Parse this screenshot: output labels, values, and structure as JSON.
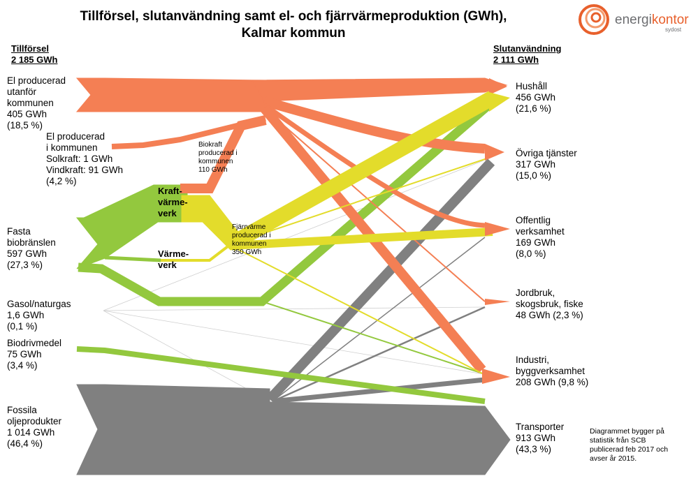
{
  "title": {
    "line1": "Tillförsel, slutanvändning samt el- och fjärrvärmeproduktion (GWh),",
    "line2": "Kalmar kommun"
  },
  "logo": {
    "part1": "energi",
    "part2": "kontor",
    "sub": "sydost"
  },
  "supply": {
    "heading": "Tillförsel",
    "total": "2 185 GWh",
    "items": [
      {
        "lines": [
          "El producerad",
          "utanför",
          "kommunen",
          "405 GWh",
          "(18,5 %)"
        ]
      },
      {
        "lines": [
          "El producerad",
          "i kommunen",
          "Solkraft: 1 GWh",
          "Vindkraft: 91 GWh",
          "(4,2 %)"
        ]
      },
      {
        "lines": [
          "Fasta",
          "biobränslen",
          "597 GWh",
          "(27,3 %)"
        ]
      },
      {
        "lines": [
          "Gasol/naturgas",
          "1,6 GWh",
          "(0,1 %)"
        ]
      },
      {
        "lines": [
          "Biodrivmedel",
          "75 GWh",
          "(3,4 %)"
        ]
      },
      {
        "lines": [
          "Fossila",
          "oljeprodukter",
          "1 014 GWh",
          "(46,4 %)"
        ]
      }
    ]
  },
  "enduse": {
    "heading": "Slutanvändning",
    "total": "2 111 GWh",
    "items": [
      {
        "lines": [
          "Hushåll",
          "456 GWh",
          "(21,6 %)"
        ]
      },
      {
        "lines": [
          "Övriga tjänster",
          "317 GWh",
          "(15,0 %)"
        ]
      },
      {
        "lines": [
          "Offentlig",
          "verksamhet",
          "169 GWh",
          "(8,0 %)"
        ]
      },
      {
        "lines": [
          "Jordbruk,",
          "skogsbruk, fiske",
          "48 GWh (2,3 %)"
        ]
      },
      {
        "lines": [
          "Industri,",
          "byggverksamhet",
          "208 GWh (9,8 %)"
        ]
      },
      {
        "lines": [
          "Transporter",
          "913 GWh",
          "(43,3 %)"
        ]
      }
    ]
  },
  "processes": {
    "kraftvarmeverk": [
      "Kraft-",
      "värme-",
      "verk"
    ],
    "varmeverk": [
      "Värme-",
      "verk"
    ],
    "biokraft": [
      "Biokraft",
      "producerad i",
      "kommunen",
      "110 GWh"
    ],
    "fjarrvarme": [
      "Fjärrvärme",
      "producerad i",
      "kommunen",
      "350 GWh"
    ]
  },
  "note": [
    "Diagrammet bygger på",
    "statistik från SCB",
    "publicerad feb 2017 och",
    "avser år 2015."
  ],
  "colors": {
    "electricity": "#f47f54",
    "district_heating": "#e3dc2b",
    "biofuel": "#93c83e",
    "fossil": "#808080",
    "gas": "#c9c9c9"
  }
}
